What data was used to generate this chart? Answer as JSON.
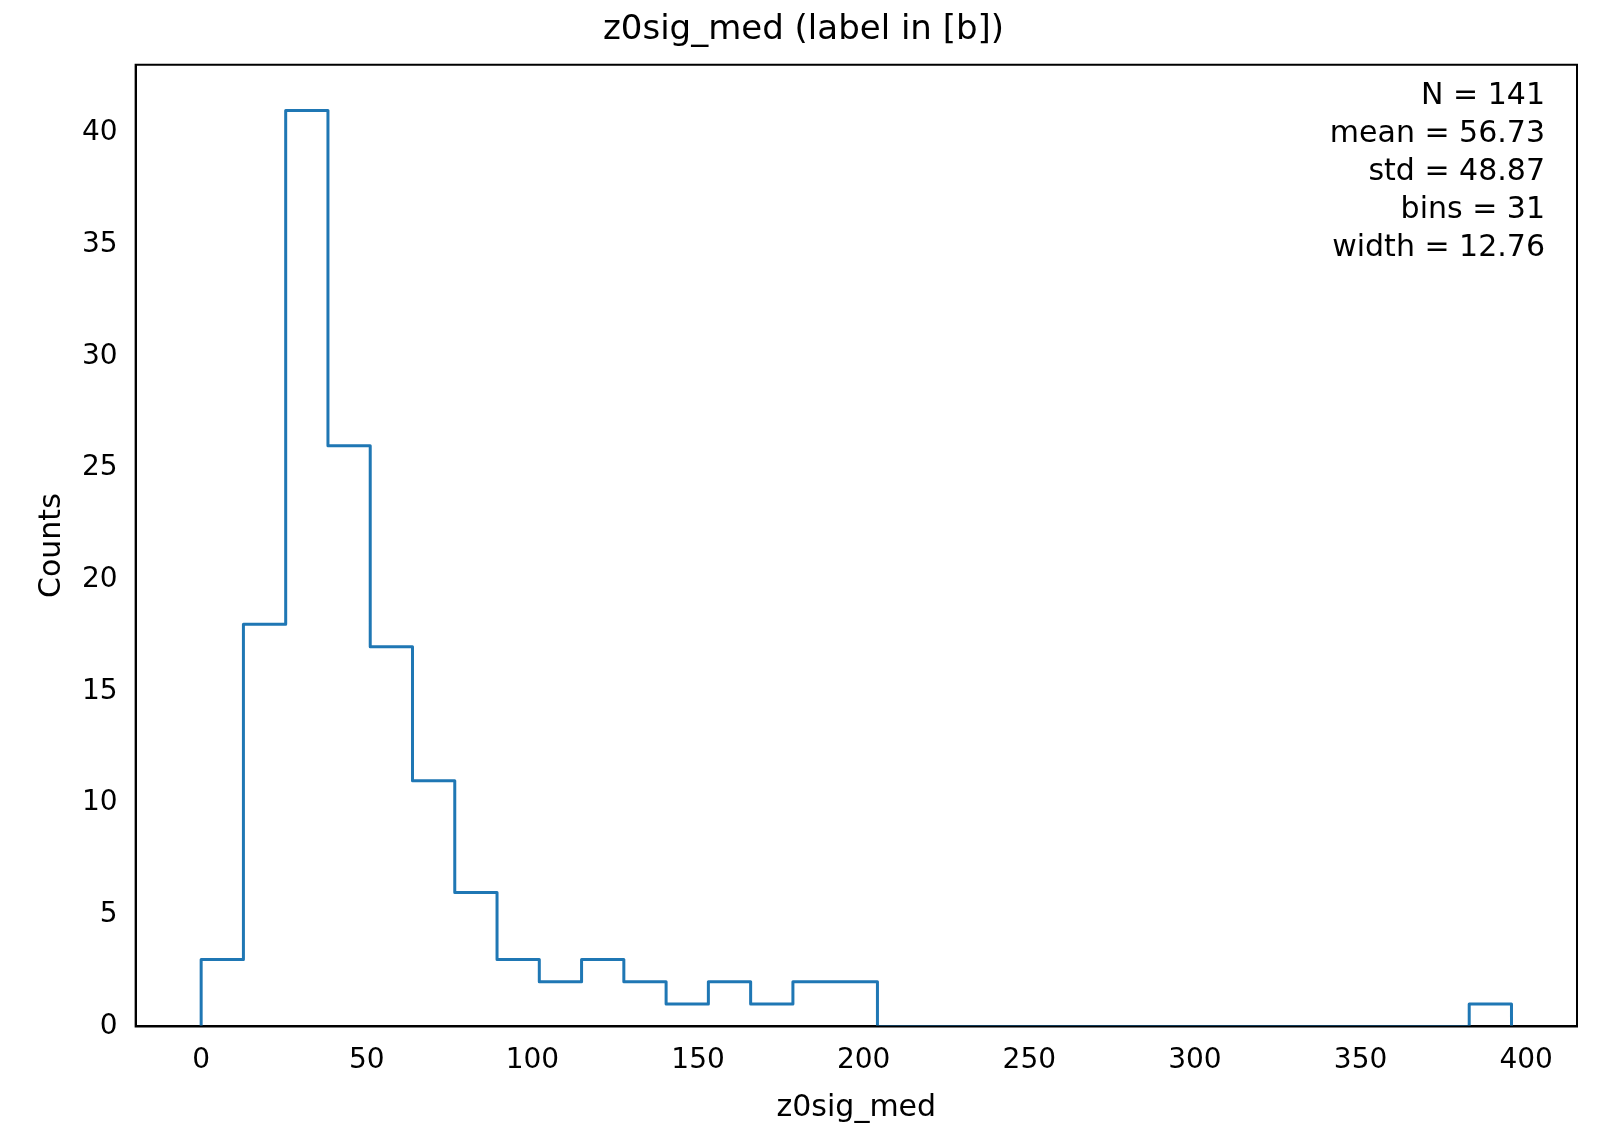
{
  "chart_data": {
    "type": "histogram",
    "title": "z0sig_med (label in [b])",
    "xlabel": "z0sig_med",
    "ylabel": "Counts",
    "bins": [
      0,
      12.76,
      25.52,
      38.28,
      51.04,
      63.8,
      76.56,
      89.32,
      102.08,
      114.84,
      127.6,
      140.36,
      153.12,
      165.88,
      178.64,
      191.4,
      204.16,
      216.92,
      229.68,
      242.44,
      255.2,
      267.96,
      280.72,
      293.48,
      306.24,
      319,
      331.76,
      344.52,
      357.28,
      370.04,
      382.8,
      395.56
    ],
    "values": [
      3,
      18,
      41,
      26,
      17,
      11,
      6,
      3,
      2,
      3,
      2,
      1,
      2,
      1,
      2,
      2,
      0,
      0,
      0,
      0,
      0,
      0,
      0,
      0,
      0,
      0,
      0,
      0,
      0,
      0,
      1
    ],
    "color": "#1f77b4",
    "xlim": [
      -19.78,
      415.34
    ],
    "xticks": [
      0,
      50,
      100,
      150,
      200,
      250,
      300,
      350,
      400
    ],
    "ylim": [
      0,
      43.05
    ],
    "yticks": [
      0,
      5,
      10,
      15,
      20,
      25,
      30,
      35,
      40
    ],
    "annotations": [
      "N = 141",
      "mean = 56.73",
      "std = 48.87",
      "bins = 31",
      "width = 12.76"
    ],
    "legend": false,
    "grid": false
  }
}
